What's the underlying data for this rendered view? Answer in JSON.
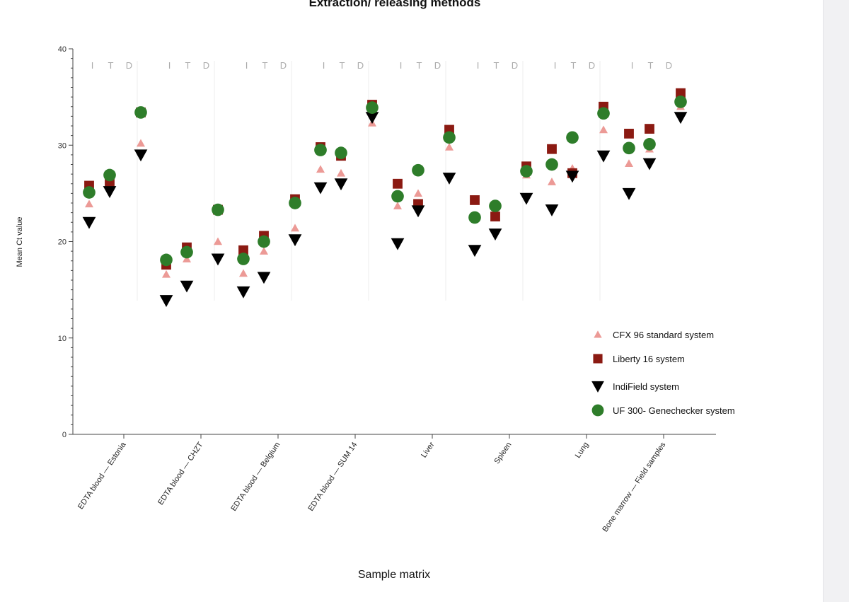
{
  "colors": {
    "CFX 96 standard system": "#ec9a96",
    "Liberty 16 system": "#8b1a12",
    "IndiField system": "#000000",
    "UF 300- Genechecker system": "#2e7d2a"
  },
  "chart_data": {
    "type": "scatter",
    "title": "Extraction/ releasing methods",
    "xlabel": "Sample matrix",
    "ylabel": "Mean Ct value",
    "ylim": [
      0,
      40
    ],
    "yticks": [
      0,
      10,
      20,
      30,
      40
    ],
    "grid": false,
    "legend_position": "bottom-right",
    "methods": [
      "I",
      "T",
      "D"
    ],
    "categories": [
      "EDTA blood — Estonia",
      "EDTA blood — CHZT",
      "EDTA blood — Belgium",
      "EDTA blood — SUM 14",
      "Liver",
      "Spleen",
      "Lung",
      "Bone marrow — Field samples"
    ],
    "series": [
      {
        "name": "CFX 96 standard system",
        "marker": "triangle-up",
        "values": [
          [
            23.9,
            26.5,
            30.2
          ],
          [
            16.6,
            18.2,
            20.0
          ],
          [
            16.7,
            19.0,
            21.4
          ],
          [
            27.5,
            27.1,
            32.3
          ],
          [
            23.7,
            25.0,
            29.8
          ],
          [
            22.4,
            22.6,
            26.9
          ],
          [
            26.2,
            27.6,
            31.6
          ],
          [
            28.1,
            29.6,
            34.0
          ]
        ]
      },
      {
        "name": "Liberty 16 system",
        "marker": "square",
        "values": [
          [
            25.8,
            26.2,
            33.4
          ],
          [
            17.6,
            19.4,
            23.3
          ],
          [
            19.1,
            20.6,
            24.4
          ],
          [
            29.8,
            28.9,
            34.2
          ],
          [
            26.0,
            23.9,
            31.6
          ],
          [
            24.3,
            22.6,
            27.8
          ],
          [
            29.6,
            27.1,
            34.0
          ],
          [
            31.2,
            31.7,
            35.4
          ]
        ]
      },
      {
        "name": "IndiField system",
        "marker": "triangle-down",
        "values": [
          [
            22.0,
            25.2,
            29.0
          ],
          [
            13.9,
            15.4,
            18.2
          ],
          [
            14.8,
            16.3,
            20.2
          ],
          [
            25.6,
            26.0,
            32.9
          ],
          [
            19.8,
            23.2,
            26.6
          ],
          [
            19.1,
            20.8,
            24.5
          ],
          [
            23.3,
            26.8,
            28.9
          ],
          [
            25.0,
            28.1,
            32.9
          ]
        ]
      },
      {
        "name": "UF 300- Genechecker system",
        "marker": "circle",
        "values": [
          [
            25.1,
            26.9,
            33.4
          ],
          [
            18.1,
            18.9,
            23.3
          ],
          [
            18.2,
            20.0,
            24.0
          ],
          [
            29.5,
            29.2,
            33.9
          ],
          [
            24.7,
            27.4,
            30.8
          ],
          [
            22.5,
            23.7,
            27.3
          ],
          [
            28.0,
            30.8,
            33.3
          ],
          [
            29.7,
            30.1,
            34.5
          ]
        ]
      }
    ]
  }
}
